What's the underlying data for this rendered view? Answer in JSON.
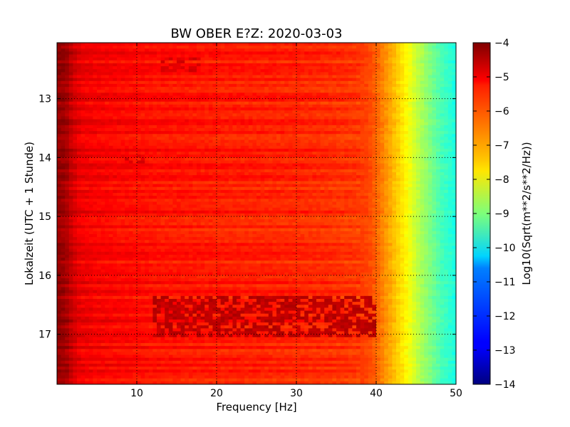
{
  "chart_data": {
    "type": "heatmap",
    "title": "BW OBER E?Z: 2020-03-03",
    "xlabel": "Frequency [Hz]",
    "ylabel": "Lokalzeit (UTC + 1 Stunde)",
    "xlim": [
      0,
      50
    ],
    "ylim": [
      12.05,
      17.85
    ],
    "y_inverted": true,
    "x_ticks": [
      10,
      20,
      30,
      40,
      50
    ],
    "x_tick_labels": [
      "10",
      "20",
      "30",
      "40",
      "50"
    ],
    "y_ticks": [
      13,
      14,
      15,
      16,
      17
    ],
    "y_tick_labels": [
      "13",
      "14",
      "15",
      "16",
      "17"
    ],
    "grid": true,
    "colormap": "jet",
    "colorbar": {
      "label": "Log10(Sqrt(m**2/s**2/Hz))",
      "vmin": -14,
      "vmax": -4,
      "ticks": [
        -4,
        -5,
        -6,
        -7,
        -8,
        -9,
        -10,
        -11,
        -12,
        -13,
        -14
      ],
      "tick_labels": [
        "−4",
        "−5",
        "−6",
        "−7",
        "−8",
        "−9",
        "−10",
        "−11",
        "−12",
        "−13",
        "−14"
      ]
    },
    "spectrum_profile": {
      "frequency_hz": [
        0,
        1,
        2,
        3,
        5,
        8,
        12,
        20,
        30,
        37,
        39,
        40,
        41,
        42,
        43,
        44,
        45,
        46,
        47,
        48,
        50
      ],
      "value_log10": [
        -4.2,
        -4.3,
        -4.8,
        -5.1,
        -5.2,
        -5.3,
        -5.4,
        -5.5,
        -5.6,
        -5.75,
        -5.9,
        -6.2,
        -6.6,
        -7.0,
        -7.4,
        -7.8,
        -8.3,
        -8.7,
        -9.1,
        -9.5,
        -10.0
      ]
    },
    "features": [
      {
        "time_from": 16.35,
        "time_to": 17.05,
        "freq_from": 12,
        "freq_to": 40,
        "value_log10": -4.6
      },
      {
        "time_from": 12.3,
        "time_to": 12.55,
        "freq_from": 13,
        "freq_to": 18,
        "value_log10": -4.9
      },
      {
        "time_from": 13.95,
        "time_to": 14.1,
        "freq_from": 8,
        "freq_to": 11,
        "value_log10": -4.9
      }
    ]
  }
}
